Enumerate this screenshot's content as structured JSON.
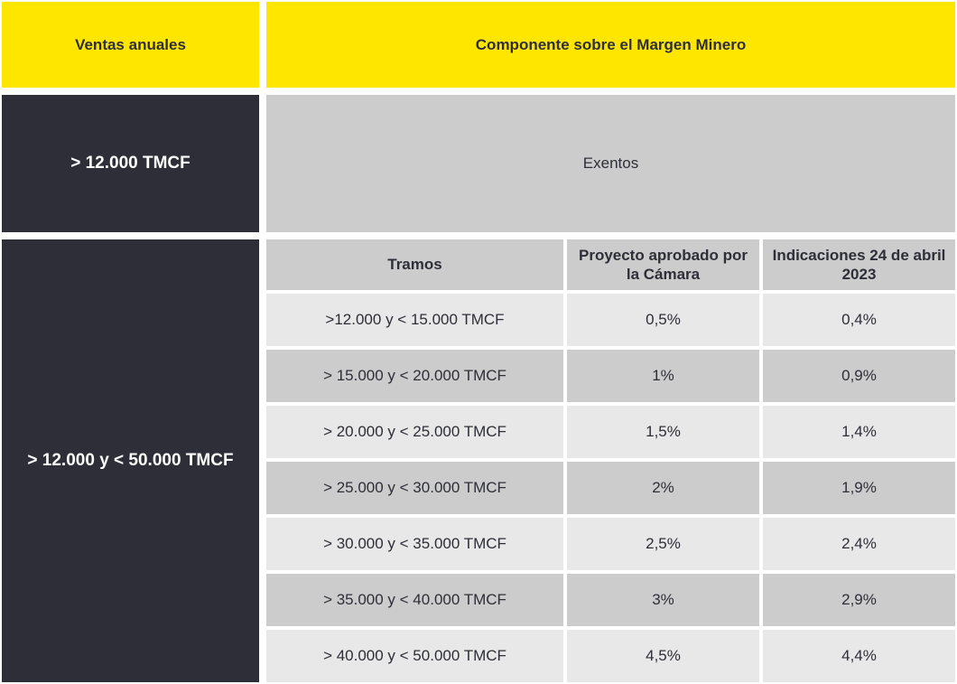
{
  "colors": {
    "header_yellow": "#ffe600",
    "dark_navy": "#2e2e38",
    "gray_medium": "#cccccc",
    "gray_light": "#e8e8e8",
    "text_dark": "#2e2e38",
    "text_light": "#ffffff"
  },
  "header": {
    "ventas_anuales": "Ventas anuales",
    "componente": "Componente sobre el Margen Minero"
  },
  "section_exentos": {
    "ventas": "> 12.000 TMCF",
    "componente": "Exentos"
  },
  "section_tramos": {
    "ventas": "> 12.000 y < 50.000 TMCF",
    "subtable": {
      "headers": {
        "tramos": "Tramos",
        "proyecto": "Proyecto aprobado por la Cámara",
        "indicaciones": "Indicaciones 24 de abril 2023"
      },
      "rows": [
        {
          "tramo": ">12.000 y < 15.000 TMCF",
          "proyecto": "0,5%",
          "indicaciones": "0,4%"
        },
        {
          "tramo": "> 15.000 y < 20.000 TMCF",
          "proyecto": "1%",
          "indicaciones": "0,9%"
        },
        {
          "tramo": "> 20.000 y < 25.000 TMCF",
          "proyecto": "1,5%",
          "indicaciones": "1,4%"
        },
        {
          "tramo": "> 25.000 y < 30.000 TMCF",
          "proyecto": "2%",
          "indicaciones": "1,9%"
        },
        {
          "tramo": "> 30.000 y < 35.000 TMCF",
          "proyecto": "2,5%",
          "indicaciones": "2,4%"
        },
        {
          "tramo": "> 35.000 y < 40.000 TMCF",
          "proyecto": "3%",
          "indicaciones": "2,9%"
        },
        {
          "tramo": "> 40.000 y < 50.000 TMCF",
          "proyecto": "4,5%",
          "indicaciones": "4,4%"
        }
      ]
    }
  }
}
